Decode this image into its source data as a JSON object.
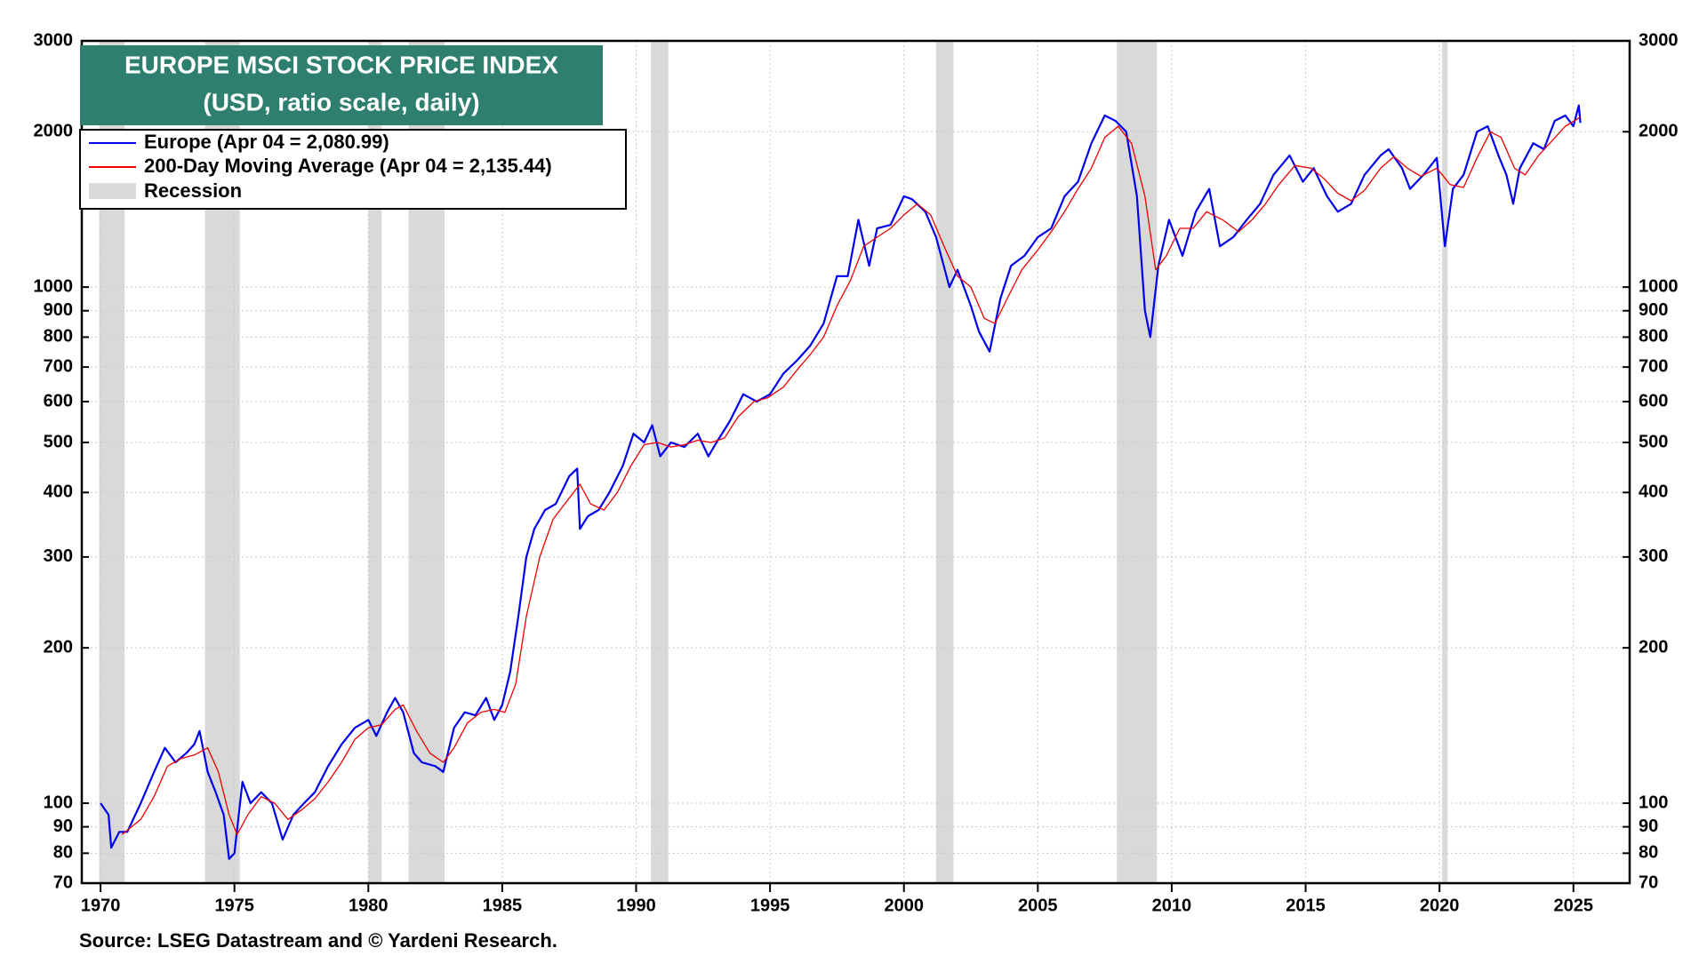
{
  "chart_data": {
    "type": "line",
    "title": "EUROPE MSCI STOCK PRICE INDEX",
    "subtitle": "(USD, ratio scale, daily)",
    "source": "Source: LSEG Datastream and © Yardeni Research.",
    "log_scale": true,
    "grid": true,
    "title_color": "#2e7f70",
    "xlim": [
      1969.3,
      2027.1
    ],
    "xticks": [
      1970,
      1975,
      1980,
      1985,
      1990,
      1995,
      2000,
      2005,
      2010,
      2015,
      2020,
      2025
    ],
    "ylim": [
      70,
      3000
    ],
    "yticks": [
      70,
      80,
      90,
      100,
      200,
      300,
      400,
      500,
      600,
      700,
      800,
      900,
      1000,
      2000,
      3000
    ],
    "recession_label": "Recession",
    "recession_color": "#d9d9d9",
    "recessions": [
      {
        "start": 1969.95,
        "end": 1970.9
      },
      {
        "start": 1973.9,
        "end": 1975.2
      },
      {
        "start": 1980.0,
        "end": 1980.5
      },
      {
        "start": 1981.5,
        "end": 1982.85
      },
      {
        "start": 1990.55,
        "end": 1991.2
      },
      {
        "start": 2001.2,
        "end": 2001.85
      },
      {
        "start": 2007.95,
        "end": 2009.45
      },
      {
        "start": 2020.1,
        "end": 2020.3
      }
    ],
    "series": [
      {
        "name": "Europe (Apr 04 = 2,080.99)",
        "color": "#0000ee",
        "x": [
          1970.0,
          1970.3,
          1970.4,
          1970.7,
          1971.0,
          1971.5,
          1972.0,
          1972.4,
          1972.8,
          1973.2,
          1973.5,
          1973.7,
          1974.0,
          1974.3,
          1974.6,
          1974.8,
          1975.0,
          1975.3,
          1975.6,
          1976.0,
          1976.4,
          1976.8,
          1977.2,
          1977.6,
          1978.0,
          1978.5,
          1979.0,
          1979.5,
          1980.0,
          1980.3,
          1980.7,
          1981.0,
          1981.3,
          1981.7,
          1982.0,
          1982.5,
          1982.8,
          1983.2,
          1983.6,
          1984.0,
          1984.4,
          1984.7,
          1985.0,
          1985.3,
          1985.6,
          1985.9,
          1986.2,
          1986.6,
          1987.0,
          1987.5,
          1987.8,
          1987.9,
          1988.2,
          1988.6,
          1989.0,
          1989.5,
          1989.9,
          1990.3,
          1990.6,
          1990.9,
          1991.3,
          1991.8,
          1992.3,
          1992.7,
          1993.0,
          1993.5,
          1994.0,
          1994.5,
          1995.0,
          1995.5,
          1996.0,
          1996.5,
          1997.0,
          1997.5,
          1997.9,
          1998.3,
          1998.7,
          1999.0,
          1999.5,
          2000.0,
          2000.3,
          2000.8,
          2001.2,
          2001.7,
          2002.0,
          2002.5,
          2002.8,
          2003.2,
          2003.6,
          2004.0,
          2004.5,
          2005.0,
          2005.5,
          2006.0,
          2006.5,
          2007.0,
          2007.5,
          2007.9,
          2008.3,
          2008.7,
          2009.0,
          2009.2,
          2009.5,
          2009.9,
          2010.4,
          2010.9,
          2011.4,
          2011.8,
          2012.3,
          2012.8,
          2013.3,
          2013.8,
          2014.4,
          2014.9,
          2015.3,
          2015.8,
          2016.2,
          2016.7,
          2017.2,
          2017.8,
          2018.1,
          2018.6,
          2018.9,
          2019.4,
          2019.9,
          2020.2,
          2020.5,
          2020.9,
          2021.4,
          2021.8,
          2022.2,
          2022.5,
          2022.75,
          2023.0,
          2023.5,
          2023.9,
          2024.3,
          2024.7,
          2025.0,
          2025.2,
          2025.26
        ],
        "values": [
          100,
          95,
          82,
          88,
          88,
          100,
          115,
          128,
          120,
          125,
          130,
          138,
          115,
          105,
          95,
          78,
          80,
          110,
          100,
          105,
          100,
          85,
          95,
          100,
          105,
          118,
          130,
          140,
          145,
          135,
          150,
          160,
          150,
          125,
          120,
          118,
          115,
          140,
          150,
          148,
          160,
          145,
          155,
          180,
          230,
          300,
          340,
          370,
          380,
          430,
          445,
          340,
          360,
          370,
          400,
          450,
          520,
          500,
          540,
          470,
          500,
          490,
          520,
          470,
          500,
          550,
          620,
          600,
          620,
          680,
          720,
          770,
          850,
          1050,
          1050,
          1350,
          1100,
          1300,
          1320,
          1500,
          1480,
          1400,
          1250,
          1000,
          1080,
          920,
          820,
          750,
          950,
          1100,
          1150,
          1250,
          1300,
          1500,
          1600,
          1900,
          2150,
          2100,
          2000,
          1500,
          900,
          800,
          1100,
          1350,
          1150,
          1400,
          1550,
          1200,
          1250,
          1350,
          1450,
          1650,
          1800,
          1600,
          1700,
          1500,
          1400,
          1450,
          1650,
          1800,
          1850,
          1700,
          1550,
          1650,
          1780,
          1200,
          1550,
          1650,
          2000,
          2050,
          1800,
          1650,
          1450,
          1700,
          1900,
          1850,
          2100,
          2150,
          2050,
          2250,
          2081
        ]
      },
      {
        "name": "200-Day Moving Average (Apr 04 = 2,135.44)",
        "color": "#ee0000",
        "x": [
          1970.8,
          1971.5,
          1972.0,
          1972.5,
          1973.0,
          1973.5,
          1974.0,
          1974.4,
          1974.8,
          1975.1,
          1975.5,
          1976.0,
          1976.5,
          1977.0,
          1977.5,
          1978.0,
          1978.5,
          1979.0,
          1979.5,
          1980.0,
          1980.5,
          1981.0,
          1981.3,
          1981.8,
          1982.3,
          1982.8,
          1983.2,
          1983.7,
          1984.2,
          1984.7,
          1985.1,
          1985.5,
          1985.9,
          1986.4,
          1986.9,
          1987.5,
          1987.9,
          1988.3,
          1988.8,
          1989.3,
          1989.8,
          1990.3,
          1990.8,
          1991.3,
          1991.8,
          1992.3,
          1992.8,
          1993.3,
          1993.8,
          1994.4,
          1994.9,
          1995.5,
          1996.0,
          1996.5,
          1997.0,
          1997.5,
          1998.0,
          1998.5,
          1999.0,
          1999.5,
          2000.0,
          2000.5,
          2001.0,
          2001.5,
          2002.0,
          2002.5,
          2003.0,
          2003.4,
          2003.9,
          2004.4,
          2005.0,
          2005.5,
          2006.0,
          2006.5,
          2007.0,
          2007.5,
          2008.0,
          2008.5,
          2009.0,
          2009.4,
          2009.8,
          2010.3,
          2010.8,
          2011.3,
          2011.9,
          2012.5,
          2013.0,
          2013.5,
          2014.0,
          2014.6,
          2015.2,
          2015.7,
          2016.2,
          2016.7,
          2017.2,
          2017.8,
          2018.3,
          2018.8,
          2019.3,
          2019.9,
          2020.4,
          2020.9,
          2021.4,
          2021.9,
          2022.3,
          2022.8,
          2023.2,
          2023.7,
          2024.2,
          2024.7,
          2025.26
        ],
        "values": [
          87,
          93,
          103,
          118,
          122,
          124,
          128,
          115,
          95,
          87,
          95,
          103,
          100,
          93,
          97,
          102,
          110,
          120,
          133,
          140,
          142,
          152,
          155,
          138,
          125,
          120,
          128,
          143,
          150,
          152,
          150,
          170,
          230,
          300,
          355,
          390,
          415,
          380,
          370,
          400,
          450,
          495,
          500,
          490,
          495,
          505,
          500,
          510,
          560,
          600,
          610,
          640,
          690,
          740,
          800,
          920,
          1030,
          1200,
          1250,
          1300,
          1380,
          1450,
          1380,
          1200,
          1050,
          1000,
          870,
          850,
          960,
          1080,
          1180,
          1280,
          1400,
          1550,
          1700,
          1950,
          2050,
          1900,
          1500,
          1080,
          1150,
          1300,
          1300,
          1400,
          1350,
          1280,
          1350,
          1450,
          1580,
          1720,
          1700,
          1620,
          1520,
          1470,
          1540,
          1700,
          1790,
          1700,
          1640,
          1700,
          1580,
          1560,
          1780,
          2000,
          1950,
          1700,
          1650,
          1800,
          1920,
          2050,
          2135
        ]
      }
    ]
  }
}
